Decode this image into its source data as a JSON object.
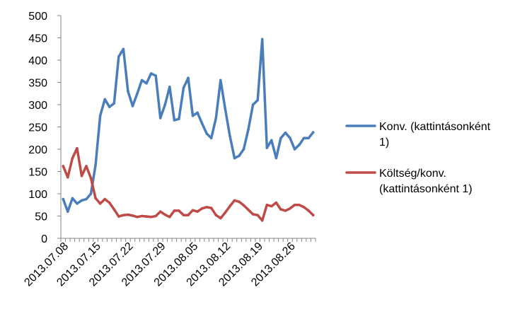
{
  "chart_data": {
    "type": "line",
    "title": "",
    "xlabel": "",
    "ylabel": "",
    "ylim": [
      0,
      500
    ],
    "y_ticks": [
      0,
      50,
      100,
      150,
      200,
      250,
      300,
      350,
      400,
      450,
      500
    ],
    "x_tick_labels": [
      "2013.07.08",
      "2013.07.15",
      "2013.07.22",
      "2013.07.29",
      "2013.08.05",
      "2013.08.12",
      "2013.08.19",
      "2013.08.26"
    ],
    "x": [
      "2013.07.08",
      "2013.07.09",
      "2013.07.10",
      "2013.07.11",
      "2013.07.12",
      "2013.07.13",
      "2013.07.14",
      "2013.07.15",
      "2013.07.16",
      "2013.07.17",
      "2013.07.18",
      "2013.07.19",
      "2013.07.20",
      "2013.07.21",
      "2013.07.22",
      "2013.07.23",
      "2013.07.24",
      "2013.07.25",
      "2013.07.26",
      "2013.07.27",
      "2013.07.28",
      "2013.07.29",
      "2013.07.30",
      "2013.07.31",
      "2013.08.01",
      "2013.08.02",
      "2013.08.03",
      "2013.08.04",
      "2013.08.05",
      "2013.08.06",
      "2013.08.07",
      "2013.08.08",
      "2013.08.09",
      "2013.08.10",
      "2013.08.11",
      "2013.08.12",
      "2013.08.13",
      "2013.08.14",
      "2013.08.15",
      "2013.08.16",
      "2013.08.17",
      "2013.08.18",
      "2013.08.19",
      "2013.08.20",
      "2013.08.21",
      "2013.08.22",
      "2013.08.23",
      "2013.08.24",
      "2013.08.25",
      "2013.08.26",
      "2013.08.27",
      "2013.08.28",
      "2013.08.29",
      "2013.08.30",
      "2013.08.31"
    ],
    "series": [
      {
        "name": "Konv. (kattintásonként 1)",
        "color": "#4a7ebb",
        "values": [
          88,
          60,
          90,
          78,
          85,
          88,
          100,
          165,
          275,
          312,
          295,
          303,
          408,
          425,
          330,
          297,
          325,
          355,
          348,
          370,
          365,
          270,
          300,
          340,
          265,
          268,
          338,
          360,
          275,
          282,
          258,
          235,
          225,
          270,
          355,
          290,
          230,
          180,
          185,
          200,
          245,
          300,
          310,
          447,
          203,
          220,
          180,
          225,
          237,
          225,
          200,
          210,
          225,
          225,
          238
        ]
      },
      {
        "name": "Költség/konv. (kattintásonként 1)",
        "color": "#be4b48",
        "values": [
          162,
          137,
          180,
          202,
          140,
          162,
          135,
          90,
          78,
          88,
          80,
          65,
          49,
          52,
          53,
          51,
          48,
          50,
          49,
          48,
          50,
          60,
          53,
          48,
          62,
          62,
          52,
          52,
          63,
          60,
          67,
          70,
          68,
          52,
          45,
          58,
          72,
          85,
          82,
          74,
          64,
          54,
          52,
          40,
          75,
          72,
          80,
          65,
          62,
          67,
          75,
          75,
          70,
          62,
          52
        ]
      }
    ],
    "legend_position": "right",
    "grid": false
  }
}
